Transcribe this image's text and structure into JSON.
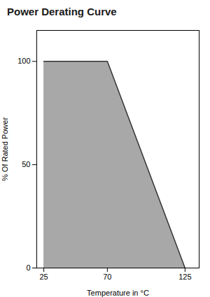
{
  "chart_data": {
    "type": "area",
    "title": "Power Derating Curve",
    "x": [
      25,
      70,
      125
    ],
    "values": [
      100,
      100,
      0
    ],
    "xlabel": "Temperature in °C",
    "ylabel": "% Of Rated Power",
    "xlim": [
      20,
      135
    ],
    "ylim": [
      0,
      115
    ],
    "xticks": [
      25,
      70,
      125
    ],
    "yticks": [
      0,
      50,
      100
    ],
    "color": "#999999",
    "grid": false
  }
}
